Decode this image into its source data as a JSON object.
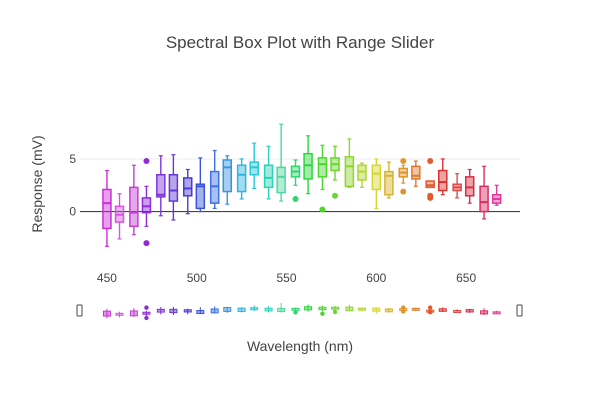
{
  "title": "Spectral Box Plot with Range Slider",
  "xlabel": "Wavelength (nm)",
  "ylabel": "Response (mV)",
  "chart_data": {
    "type": "box",
    "title": "Spectral Box Plot with Range Slider",
    "xlabel": "Wavelength (nm)",
    "ylabel": "Response (mV)",
    "xlim": [
      435,
      680
    ],
    "ylim": [
      -4.6,
      10.6
    ],
    "x_ticks": [
      450,
      500,
      550,
      600,
      650
    ],
    "y_ticks": [
      0,
      5
    ],
    "grid": true,
    "range_slider": true,
    "boxes": [
      {
        "x": 450,
        "min": -3.3,
        "q1": -1.6,
        "median": 0.8,
        "q3": 2.1,
        "max": 3.9,
        "outliers": [],
        "color": "#cc2dd6"
      },
      {
        "x": 457,
        "min": -2.6,
        "q1": -1.0,
        "median": -0.3,
        "q3": 0.5,
        "max": 1.7,
        "outliers": [],
        "color": "#d855e0"
      },
      {
        "x": 465,
        "min": -2.2,
        "q1": -1.4,
        "median": -0.1,
        "q3": 2.3,
        "max": 4.4,
        "outliers": [],
        "color": "#c43ed1"
      },
      {
        "x": 472,
        "min": -1.4,
        "q1": -0.1,
        "median": 0.5,
        "q3": 1.3,
        "max": 2.4,
        "outliers": [
          4.8,
          -3.0
        ],
        "color": "#8e2bd6"
      },
      {
        "x": 480,
        "min": -0.4,
        "q1": 1.4,
        "median": 1.6,
        "q3": 3.5,
        "max": 5.3,
        "outliers": [],
        "color": "#7b35d6"
      },
      {
        "x": 487,
        "min": -0.8,
        "q1": 1.0,
        "median": 2.0,
        "q3": 3.5,
        "max": 5.4,
        "outliers": [],
        "color": "#6238d6"
      },
      {
        "x": 495,
        "min": -0.2,
        "q1": 1.5,
        "median": 2.2,
        "q3": 3.2,
        "max": 4.0,
        "outliers": [],
        "color": "#4b3ad6"
      },
      {
        "x": 502,
        "min": 0.0,
        "q1": 0.3,
        "median": 2.4,
        "q3": 2.6,
        "max": 5.1,
        "outliers": [],
        "color": "#3a55d6"
      },
      {
        "x": 510,
        "min": 0.3,
        "q1": 0.8,
        "median": 2.4,
        "q3": 3.8,
        "max": 5.8,
        "outliers": [],
        "color": "#3d72df"
      },
      {
        "x": 517,
        "min": 0.7,
        "q1": 1.9,
        "median": 4.2,
        "q3": 4.9,
        "max": 5.3,
        "outliers": [],
        "color": "#3595e0"
      },
      {
        "x": 525,
        "min": 1.2,
        "q1": 1.9,
        "median": 3.5,
        "q3": 4.4,
        "max": 5.0,
        "outliers": [],
        "color": "#2fb4e0"
      },
      {
        "x": 532,
        "min": 2.2,
        "q1": 3.5,
        "median": 4.2,
        "q3": 4.7,
        "max": 6.5,
        "outliers": [],
        "color": "#2bc6d6"
      },
      {
        "x": 540,
        "min": 1.2,
        "q1": 2.3,
        "median": 3.2,
        "q3": 4.4,
        "max": 6.2,
        "outliers": [],
        "color": "#2ad3b5"
      },
      {
        "x": 547,
        "min": 1.0,
        "q1": 1.8,
        "median": 3.3,
        "q3": 4.2,
        "max": 8.3,
        "outliers": [],
        "color": "#4ed8a0"
      },
      {
        "x": 555,
        "min": 2.5,
        "q1": 3.3,
        "median": 3.8,
        "q3": 4.3,
        "max": 4.9,
        "outliers": [
          1.2
        ],
        "color": "#2dd670"
      },
      {
        "x": 562,
        "min": 1.7,
        "q1": 3.1,
        "median": 4.4,
        "q3": 5.5,
        "max": 7.2,
        "outliers": [],
        "color": "#2ed63e"
      },
      {
        "x": 570,
        "min": 2.1,
        "q1": 3.3,
        "median": 4.5,
        "q3": 5.1,
        "max": 6.3,
        "outliers": [
          0.2
        ],
        "color": "#4cd62e"
      },
      {
        "x": 577,
        "min": 3.0,
        "q1": 3.9,
        "median": 4.5,
        "q3": 5.1,
        "max": 6.2,
        "outliers": [
          1.5
        ],
        "color": "#6ad62e"
      },
      {
        "x": 585,
        "min": 2.3,
        "q1": 2.4,
        "median": 4.3,
        "q3": 5.2,
        "max": 6.9,
        "outliers": [],
        "color": "#8ed62e"
      },
      {
        "x": 592,
        "min": 2.3,
        "q1": 3.0,
        "median": 3.8,
        "q3": 4.4,
        "max": 4.6,
        "outliers": [],
        "color": "#b0d62e"
      },
      {
        "x": 600,
        "min": 0.3,
        "q1": 2.1,
        "median": 3.6,
        "q3": 4.4,
        "max": 5.0,
        "outliers": [],
        "color": "#d6d62e"
      },
      {
        "x": 607,
        "min": 1.3,
        "q1": 1.6,
        "median": 3.4,
        "q3": 3.8,
        "max": 4.7,
        "outliers": [],
        "color": "#d6b42e"
      },
      {
        "x": 615,
        "min": 2.7,
        "q1": 3.3,
        "median": 3.7,
        "q3": 4.1,
        "max": 4.4,
        "outliers": [
          4.8,
          1.9
        ],
        "color": "#e0962e"
      },
      {
        "x": 622,
        "min": 2.4,
        "q1": 3.1,
        "median": 3.4,
        "q3": 4.3,
        "max": 4.8,
        "outliers": [],
        "color": "#e07a2e"
      },
      {
        "x": 630,
        "min": 2.3,
        "q1": 2.3,
        "median": 2.5,
        "q3": 2.9,
        "max": 2.9,
        "outliers": [
          4.8,
          1.5,
          1.3
        ],
        "color": "#e05a2e"
      },
      {
        "x": 637,
        "min": 1.6,
        "q1": 2.0,
        "median": 2.8,
        "q3": 3.9,
        "max": 5.0,
        "outliers": [],
        "color": "#d6322e"
      },
      {
        "x": 645,
        "min": 1.3,
        "q1": 2.0,
        "median": 2.3,
        "q3": 2.6,
        "max": 3.6,
        "outliers": [],
        "color": "#e04a4a"
      },
      {
        "x": 652,
        "min": 0.8,
        "q1": 1.5,
        "median": 2.3,
        "q3": 3.3,
        "max": 4.0,
        "outliers": [],
        "color": "#d62e45"
      },
      {
        "x": 660,
        "min": -0.7,
        "q1": 0.0,
        "median": 0.9,
        "q3": 2.4,
        "max": 4.3,
        "outliers": [],
        "color": "#d62e63"
      },
      {
        "x": 667,
        "min": 0.6,
        "q1": 0.8,
        "median": 1.2,
        "q3": 1.6,
        "max": 2.5,
        "outliers": [],
        "color": "#e0389a"
      }
    ]
  }
}
